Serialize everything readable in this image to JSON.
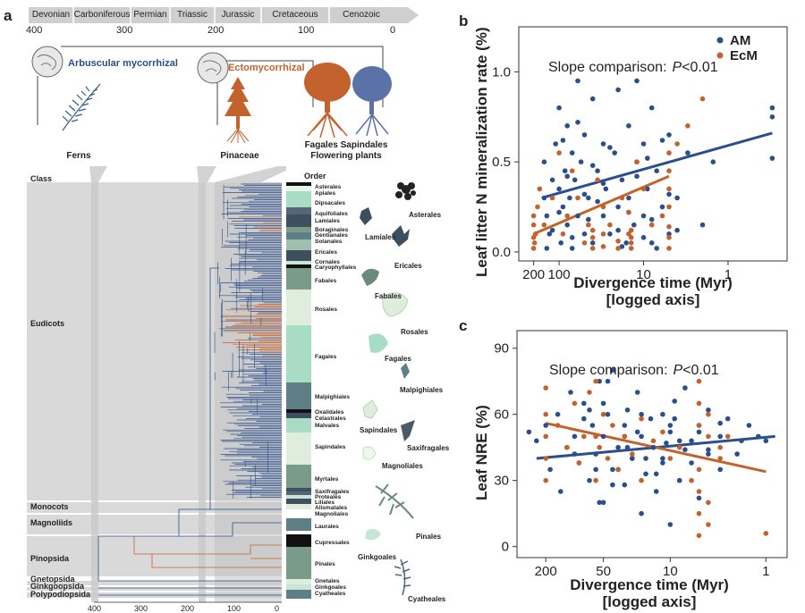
{
  "panel_a": {
    "label": "a",
    "periods": [
      "Devonian",
      "Carboniferous",
      "Permian",
      "Triassic",
      "Jurassic",
      "Cretaceous",
      "Cenozoic"
    ],
    "top_axis_ticks": [
      "400",
      "300",
      "200",
      "100",
      "0"
    ],
    "bottom_axis_ticks": [
      "400",
      "300",
      "200",
      "100",
      "0"
    ],
    "am_label": "Arbuscular mycorrhizal",
    "ecm_label": "Ectomycorrhizal",
    "group_labels": [
      "Ferns",
      "Pinaceae",
      "Fagales Sapindales",
      "Flowering plants"
    ],
    "class_header": "Class",
    "order_header": "Order",
    "classes": [
      "Eudicots",
      "Monocots",
      "Magnoliids",
      "Pinopsida",
      "Gnetopsida",
      "Ginkgoopsida",
      "Polypodiopsida"
    ],
    "orders": [
      "Asterales",
      "Apiales",
      "Dipsacales",
      "Aquifoliales",
      "Lamiales",
      "Boraginales",
      "Gentianales",
      "Solanales",
      "Ericales",
      "Cornales",
      "Caryophyllales",
      "Fabales",
      "Rosales",
      "Fagales",
      "Malpighiales",
      "Oxalidales",
      "Celastrales",
      "Malvales",
      "Sapindales",
      "Myrtales",
      "Saxifragales",
      "Proteales",
      "Liliales",
      "Alismatales",
      "Magnoliales",
      "Laurales",
      "Cupressales",
      "Pinales",
      "Gnetales",
      "Ginkgoales",
      "Cyatheales"
    ],
    "silhouette_labels": [
      "Asterales",
      "Lamiales",
      "Ericales",
      "Fabales",
      "Rosales",
      "Fagales",
      "Malpighiales",
      "Sapindales",
      "Saxifragales",
      "Magnoliales",
      "Pinales",
      "Ginkgoales",
      "Cyatheales"
    ]
  },
  "panel_b": {
    "label": "b",
    "annotation_prefix": "Slope comparison:",
    "annotation_p": "P",
    "annotation_suffix": "<0.01",
    "ylabel": "Leaf litter N mineralization rate (%)",
    "xlabel_line1": "Divergence time (Myr)",
    "xlabel_line2": "[logged axis]",
    "x_ticks": [
      "200",
      "100",
      "10",
      "1"
    ],
    "y_ticks": [
      "0.0",
      "0.5",
      "1.0"
    ],
    "legend": [
      "AM",
      "EcM"
    ]
  },
  "panel_c": {
    "label": "c",
    "annotation_prefix": "Slope comparison:",
    "annotation_p": "P",
    "annotation_suffix": "<0.01",
    "ylabel": "Leaf NRE (%)",
    "xlabel_line1": "Divergence time (Myr)",
    "xlabel_line2": "[logged axis]",
    "x_ticks": [
      "200",
      "50",
      "10",
      "1"
    ],
    "y_ticks": [
      "0",
      "30",
      "60",
      "90"
    ]
  },
  "colors": {
    "am": "#2b4e8c",
    "ecm": "#c4622d",
    "grey_band": "#d9d9d9"
  },
  "chart_data": [
    {
      "type": "scatter",
      "title": "",
      "xlabel": "Divergence time (Myr) [logged axis]",
      "ylabel": "Leaf litter N mineralization rate (%)",
      "x_scale": "log-reversed",
      "xlim": [
        300,
        0.2
      ],
      "ylim": [
        -0.05,
        1.25
      ],
      "legend_position": "top-right",
      "series": [
        {
          "name": "AM",
          "color": "#2b4e8c",
          "x": [
            150,
            150,
            140,
            130,
            120,
            110,
            100,
            100,
            95,
            90,
            85,
            80,
            80,
            75,
            70,
            70,
            65,
            60,
            60,
            55,
            50,
            50,
            45,
            40,
            40,
            35,
            30,
            30,
            28,
            25,
            22,
            20,
            20,
            18,
            16,
            15,
            15,
            13,
            12,
            12,
            10,
            10,
            9,
            8,
            8,
            7,
            6,
            5,
            5,
            4,
            3,
            2,
            1.5,
            0.3,
            0.3,
            0.3,
            140,
            120,
            100,
            90,
            80,
            70,
            60,
            50,
            45,
            40,
            35,
            30,
            25,
            20,
            18,
            15,
            12,
            10,
            9,
            8,
            7,
            6,
            5,
            4
          ],
          "y": [
            0.3,
            0.5,
            0.2,
            0.1,
            0.4,
            0.6,
            0.35,
            0.8,
            0.05,
            0.25,
            0.45,
            0.15,
            0.7,
            0.3,
            0.55,
            0.02,
            0.4,
            0.2,
            0.95,
            0.5,
            0.1,
            0.65,
            0.3,
            0.05,
            0.85,
            0.45,
            0.2,
            0.6,
            0.35,
            0.1,
            0.55,
            0.25,
            0.9,
            0.4,
            0.05,
            0.7,
            0.3,
            0.15,
            0.5,
            0.95,
            0.2,
            0.6,
            0.35,
            0.05,
            0.8,
            0.45,
            0.25,
            0.1,
            0.65,
            0.3,
            0.55,
            0.15,
            0.5,
            0.8,
            0.75,
            0.52,
            0.02,
            0.12,
            0.22,
            0.62,
            0.42,
            0.08,
            0.72,
            0.32,
            0.18,
            0.48,
            0.28,
            0.38,
            0.58,
            0.12,
            0.03,
            0.22,
            0.42,
            0.08,
            0.52,
            0.18,
            0.02,
            0.62,
            0.32,
            0.12
          ]
        },
        {
          "name": "EcM",
          "color": "#c4622d",
          "x": [
            200,
            200,
            200,
            200,
            195,
            190,
            180,
            170,
            150,
            120,
            100,
            90,
            80,
            70,
            60,
            50,
            45,
            40,
            40,
            40,
            35,
            30,
            30,
            30,
            25,
            20,
            20,
            18,
            15,
            15,
            14,
            14,
            14,
            14,
            12,
            10,
            8,
            6,
            5,
            5,
            5,
            5,
            5,
            5,
            5,
            4,
            3,
            2
          ],
          "y": [
            0.02,
            0.08,
            0.15,
            0.2,
            0.05,
            0.1,
            0.25,
            0.35,
            0.15,
            0.3,
            0.55,
            0.1,
            0.2,
            0.45,
            0.3,
            0.05,
            0.15,
            0.02,
            0.08,
            0.12,
            0.4,
            0.03,
            0.1,
            0.25,
            0.15,
            0.02,
            0.06,
            0.3,
            0.1,
            0.22,
            0.02,
            0.05,
            0.08,
            0.12,
            0.5,
            0.35,
            0.15,
            0.2,
            0.02,
            0.08,
            0.14,
            0.25,
            0.35,
            0.45,
            0.55,
            0.6,
            0.7,
            0.85
          ]
        }
      ],
      "fit_lines": [
        {
          "series": "AM",
          "x": [
            160,
            0.3
          ],
          "y": [
            0.3,
            0.66
          ]
        },
        {
          "series": "EcM",
          "x": [
            200,
            5
          ],
          "y": [
            0.1,
            0.42
          ]
        }
      ]
    },
    {
      "type": "scatter",
      "title": "",
      "xlabel": "Divergence time (Myr) [logged axis]",
      "ylabel": "Leaf NRE (%)",
      "x_scale": "log-reversed",
      "xlim": [
        400,
        0.6
      ],
      "ylim": [
        -5,
        98
      ],
      "series": [
        {
          "name": "AM",
          "color": "#2b4e8c",
          "x": [
            300,
            250,
            200,
            180,
            150,
            140,
            120,
            110,
            100,
            90,
            80,
            70,
            65,
            60,
            55,
            50,
            50,
            45,
            40,
            40,
            35,
            30,
            30,
            28,
            25,
            22,
            20,
            20,
            18,
            16,
            15,
            14,
            12,
            12,
            10,
            10,
            9,
            8,
            8,
            7,
            6,
            5,
            5,
            4,
            4,
            3,
            3,
            2.5,
            2,
            1.8,
            1.5,
            1.2,
            1,
            100,
            80,
            60,
            50,
            40,
            30,
            25,
            20,
            15,
            12,
            10,
            8,
            6,
            5,
            4,
            3,
            70,
            55,
            45,
            35,
            28,
            22,
            18,
            14,
            11,
            9,
            7
          ],
          "y": [
            52,
            48,
            55,
            35,
            60,
            25,
            45,
            70,
            50,
            38,
            65,
            30,
            55,
            42,
            75,
            20,
            50,
            60,
            35,
            80,
            45,
            28,
            55,
            62,
            40,
            70,
            15,
            50,
            33,
            58,
            45,
            25,
            60,
            40,
            10,
            52,
            66,
            30,
            48,
            72,
            38,
            22,
            55,
            44,
            62,
            50,
            35,
            58,
            42,
            48,
            55,
            50,
            48,
            42,
            58,
            35,
            65,
            28,
            50,
            40,
            60,
            45,
            38,
            55,
            30,
            48,
            52,
            42,
            56,
            62,
            20,
            75,
            35,
            45,
            52,
            40,
            33,
            47,
            58,
            44
          ]
        },
        {
          "name": "EcM",
          "color": "#c4622d",
          "x": [
            200,
            200,
            200,
            200,
            200,
            150,
            120,
            100,
            90,
            80,
            70,
            60,
            60,
            60,
            55,
            50,
            45,
            40,
            35,
            30,
            25,
            20,
            20,
            15,
            12,
            10,
            8,
            6,
            5,
            5,
            5,
            5,
            5,
            5,
            5,
            4,
            4,
            4,
            4,
            3,
            3,
            2.5,
            1
          ],
          "y": [
            30,
            40,
            50,
            60,
            72,
            55,
            45,
            65,
            38,
            50,
            70,
            30,
            50,
            75,
            45,
            60,
            40,
            55,
            35,
            50,
            42,
            30,
            58,
            48,
            52,
            40,
            45,
            30,
            5,
            15,
            25,
            35,
            55,
            65,
            75,
            10,
            20,
            50,
            60,
            40,
            45,
            50,
            6
          ]
        }
      ],
      "fit_lines": [
        {
          "series": "AM",
          "x": [
            250,
            0.8
          ],
          "y": [
            40,
            50
          ]
        },
        {
          "series": "EcM",
          "x": [
            200,
            1
          ],
          "y": [
            56,
            34
          ]
        }
      ]
    }
  ]
}
